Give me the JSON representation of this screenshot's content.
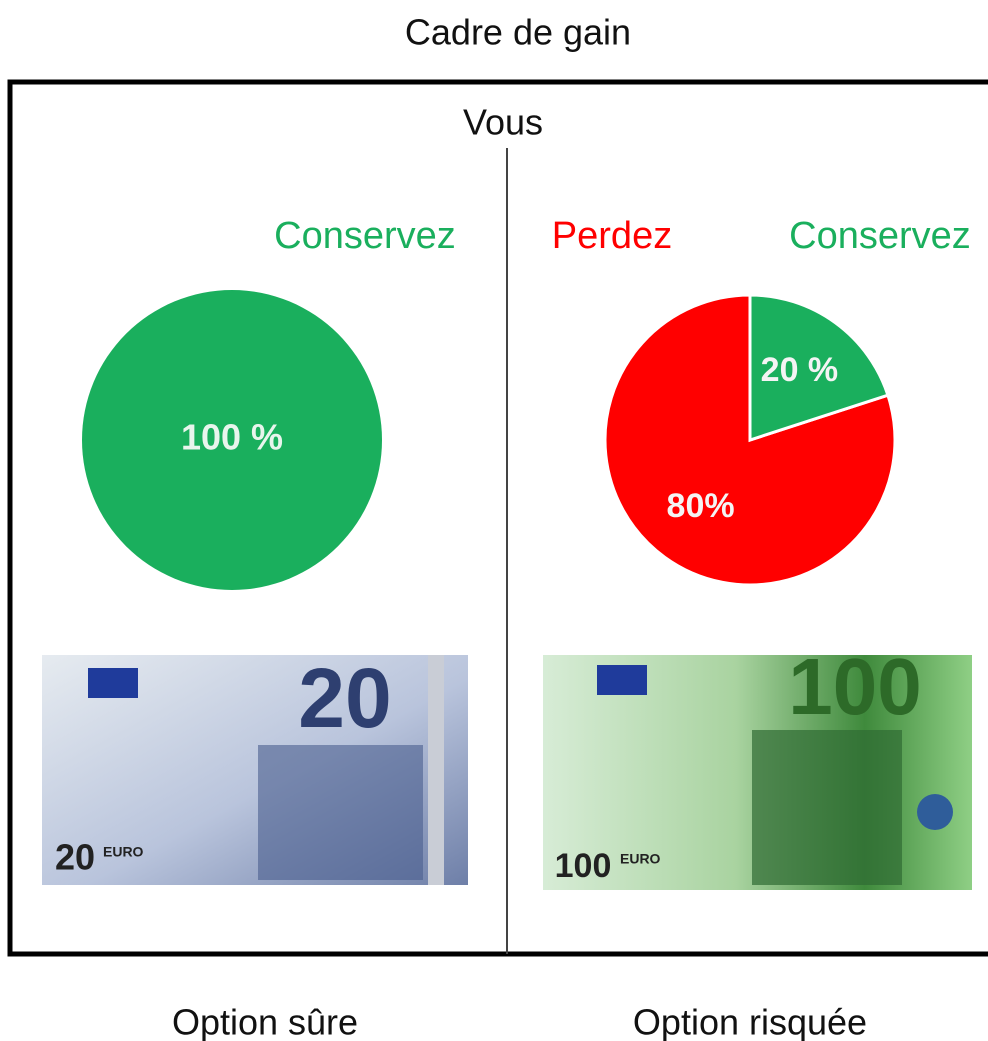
{
  "title": "Cadre de gain",
  "center_label": "Vous",
  "options": [
    {
      "label": "Option sûre",
      "pie": {
        "slices": [
          {
            "name": "Conservez",
            "value": 100,
            "label": "100 %",
            "color": "#1aaf5d"
          }
        ]
      },
      "banknote": {
        "denomination": "20",
        "currency": "EURO"
      }
    },
    {
      "label": "Option risquée",
      "pie": {
        "slices": [
          {
            "name": "Perdez",
            "value": 80,
            "label": "80%",
            "color": "#ff0000"
          },
          {
            "name": "Conservez",
            "value": 20,
            "label": "20 %",
            "color": "#1aaf5d"
          }
        ]
      },
      "banknote": {
        "denomination": "100",
        "currency": "EURO"
      }
    }
  ]
}
